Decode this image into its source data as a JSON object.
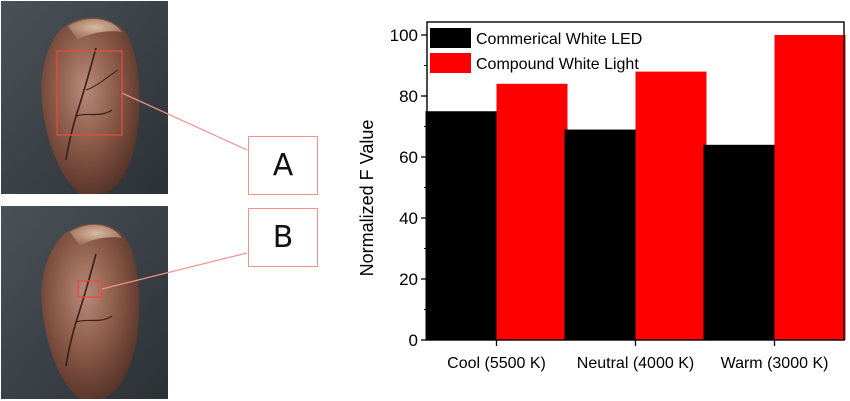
{
  "figure": {
    "photo_labels": [
      "A",
      "B"
    ]
  },
  "chart_data": {
    "type": "bar",
    "categories": [
      "Cool (5500 K)",
      "Neutral (4000 K)",
      "Warm (3000 K)"
    ],
    "series": [
      {
        "name": "Commerical White LED",
        "values": [
          75,
          69,
          64
        ],
        "color": "#000000"
      },
      {
        "name": "Compound White Light",
        "values": [
          84,
          88,
          100
        ],
        "color": "#ff0000"
      }
    ],
    "title": "",
    "xlabel": "",
    "ylabel": "Normalized F Value",
    "ylim": [
      0,
      100
    ],
    "yticks": [
      0,
      20,
      40,
      60,
      80,
      100
    ],
    "grid": false,
    "legend": "top-left"
  }
}
